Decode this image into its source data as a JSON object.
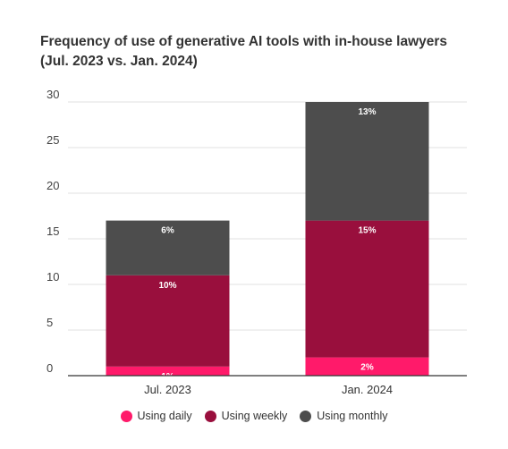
{
  "chart_data": {
    "type": "bar",
    "stacked": true,
    "title": "Frequency of use of generative AI tools with in-house lawyers",
    "subtitle": "(Jul. 2023 vs. Jan. 2024)",
    "categories": [
      "Jul. 2023",
      "Jan. 2024"
    ],
    "series": [
      {
        "name": "Using daily",
        "values": [
          1,
          2
        ],
        "labels": [
          "1%",
          "2%"
        ],
        "color": "#ff1a6a"
      },
      {
        "name": "Using weekly",
        "values": [
          10,
          15
        ],
        "labels": [
          "10%",
          "15%"
        ],
        "color": "#990f3d"
      },
      {
        "name": "Using monthly",
        "values": [
          6,
          13
        ],
        "labels": [
          "6%",
          "13%"
        ],
        "color": "#4d4d4d"
      }
    ],
    "ylim": [
      0,
      30
    ],
    "yticks": [
      0,
      5,
      10,
      15,
      20,
      25,
      30
    ],
    "ytick_labels": [
      "0",
      "5",
      "10",
      "15",
      "20",
      "25",
      "30"
    ],
    "grid": true,
    "legend_position": "bottom"
  }
}
